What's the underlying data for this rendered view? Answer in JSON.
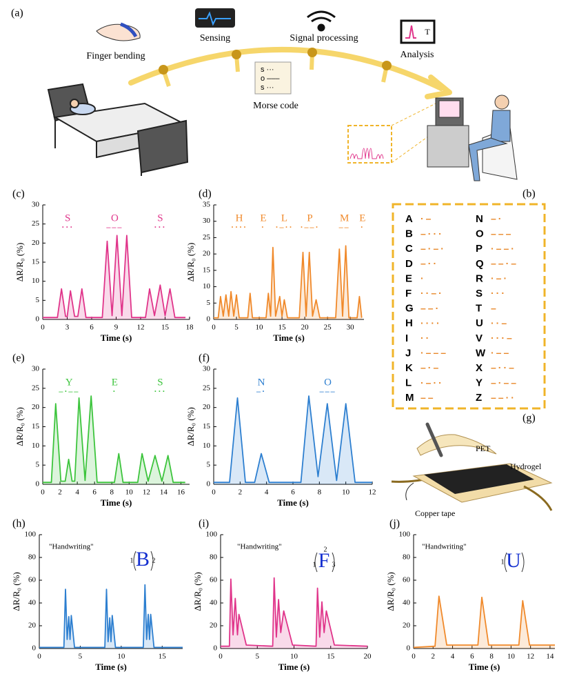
{
  "diagram_a": {
    "panel": "(a)",
    "finger": "Finger bending",
    "sensing": "Sensing",
    "signal": "Signal processing",
    "analysis": "Analysis",
    "morse": "Morse code",
    "card": [
      "s ···",
      "o –––",
      "s ···"
    ],
    "icon_letter": "T"
  },
  "morse_table": {
    "panel": "(b)",
    "rows": [
      {
        "letter": "A",
        "code": "·–"
      },
      {
        "letter": "B",
        "code": "–···"
      },
      {
        "letter": "C",
        "code": "–·–·"
      },
      {
        "letter": "D",
        "code": "–··"
      },
      {
        "letter": "E",
        "code": "·"
      },
      {
        "letter": "F",
        "code": "··–·"
      },
      {
        "letter": "G",
        "code": "––·"
      },
      {
        "letter": "H",
        "code": "····"
      },
      {
        "letter": "I",
        "code": "··"
      },
      {
        "letter": "J",
        "code": "·–––"
      },
      {
        "letter": "K",
        "code": "–·–"
      },
      {
        "letter": "L",
        "code": "·–··"
      },
      {
        "letter": "M",
        "code": "––"
      },
      {
        "letter": "N",
        "code": "–·"
      },
      {
        "letter": "O",
        "code": "–––"
      },
      {
        "letter": "P",
        "code": "·––·"
      },
      {
        "letter": "Q",
        "code": "––·–"
      },
      {
        "letter": "R",
        "code": "·–·"
      },
      {
        "letter": "S",
        "code": "···"
      },
      {
        "letter": "T",
        "code": "–"
      },
      {
        "letter": "U",
        "code": "··–"
      },
      {
        "letter": "V",
        "code": "···–"
      },
      {
        "letter": "W",
        "code": "·––"
      },
      {
        "letter": "X",
        "code": "–··–"
      },
      {
        "letter": "Y",
        "code": "–·––"
      },
      {
        "letter": "Z",
        "code": "––··"
      }
    ]
  },
  "diagram_g": {
    "panel": "(g)",
    "pet": "PET",
    "hydrogel": "Hydrogel",
    "copper": "Copper tape"
  },
  "chart_data": [
    {
      "type": "line",
      "panel": "(c)",
      "color": "#e0348a",
      "xlabel": "Time (s)",
      "ylabel": "ΔR/R₀ (%)",
      "xlim": [
        0,
        18
      ],
      "xticks": [
        0,
        3,
        6,
        9,
        12,
        15,
        18
      ],
      "ylim": [
        0,
        30
      ],
      "yticks": [
        0,
        5,
        10,
        15,
        20,
        25,
        30
      ],
      "letters": [
        {
          "letter": "S",
          "code": "···"
        },
        {
          "letter": "O",
          "code": "–––"
        },
        {
          "letter": "S",
          "code": "···"
        }
      ],
      "x": [
        0,
        1.8,
        2.3,
        2.8,
        3.0,
        3.4,
        3.9,
        4.3,
        4.8,
        5.3,
        7.3,
        7.9,
        8.5,
        9.1,
        9.7,
        10.3,
        10.9,
        12.6,
        13.1,
        13.7,
        14.4,
        15.0,
        15.6,
        16.2,
        17.5
      ],
      "values": [
        0.5,
        0.5,
        8,
        0.8,
        0.8,
        7.5,
        0.8,
        0.8,
        8,
        0.5,
        0.5,
        20.5,
        1,
        22,
        1,
        22,
        0.5,
        0.5,
        8,
        1,
        9,
        1,
        8,
        0.5,
        0.5
      ]
    },
    {
      "type": "line",
      "panel": "(d)",
      "color": "#f0892a",
      "xlabel": "Time (s)",
      "ylabel": "ΔR/R₀ (%)",
      "xlim": [
        0,
        33
      ],
      "xticks": [
        0,
        5,
        10,
        15,
        20,
        25,
        30
      ],
      "ylim": [
        0,
        35
      ],
      "yticks": [
        0,
        5,
        10,
        15,
        20,
        25,
        30,
        35
      ],
      "letters": [
        {
          "letter": "H",
          "code": "····"
        },
        {
          "letter": "E",
          "code": "·"
        },
        {
          "letter": "L",
          "code": "·–··"
        },
        {
          "letter": "P",
          "code": "·––·"
        },
        {
          "letter": "M",
          "code": "––"
        },
        {
          "letter": "E",
          "code": "·"
        }
      ],
      "x": [
        0,
        1,
        1.5,
        2.1,
        2.7,
        3.3,
        3.8,
        4.4,
        5,
        5.6,
        7.5,
        8,
        8.5,
        11.5,
        12,
        12.5,
        13,
        13.6,
        14.5,
        15,
        15.5,
        16.2,
        18.8,
        19.6,
        20.3,
        21,
        21.7,
        22.5,
        23.3,
        26.8,
        27.6,
        28.3,
        29,
        29.7,
        31.5,
        32,
        32.5
      ],
      "values": [
        0.5,
        0.5,
        7,
        1,
        7.5,
        1,
        8.5,
        1,
        7.5,
        0.5,
        0.5,
        8,
        0.5,
        0.5,
        8,
        1,
        22,
        1,
        7,
        1,
        6,
        0.5,
        0.5,
        20.5,
        1,
        20.5,
        1,
        6,
        0.5,
        0.5,
        21.5,
        1,
        22.5,
        0.5,
        0.5,
        7,
        0.5
      ]
    },
    {
      "type": "line",
      "panel": "(e)",
      "color": "#3cc43c",
      "xlabel": "Time (s)",
      "ylabel": "ΔR/R₀ (%)",
      "xlim": [
        0,
        17
      ],
      "xticks": [
        0,
        2,
        4,
        6,
        8,
        10,
        12,
        14,
        16
      ],
      "ylim": [
        0,
        30
      ],
      "yticks": [
        0,
        5,
        10,
        15,
        20,
        25,
        30
      ],
      "letters": [
        {
          "letter": "Y",
          "code": "–·––"
        },
        {
          "letter": "E",
          "code": "·"
        },
        {
          "letter": "S",
          "code": "···"
        }
      ],
      "x": [
        0,
        1,
        1.5,
        2.1,
        2.6,
        3,
        3.4,
        3.7,
        4.2,
        4.9,
        5.6,
        6.3,
        8.3,
        8.8,
        9.3,
        11,
        11.5,
        12.2,
        13,
        13.8,
        14.5,
        15.1,
        16.5
      ],
      "values": [
        0.5,
        0.5,
        21,
        0.8,
        0.8,
        6.5,
        0.8,
        0.8,
        22.5,
        1,
        23,
        0.5,
        0.5,
        8,
        0.5,
        0.5,
        8,
        0.8,
        7.5,
        0.8,
        7.5,
        0.5,
        0.5
      ]
    },
    {
      "type": "line",
      "panel": "(f)",
      "color": "#2d7fd0",
      "xlabel": "Time (s)",
      "ylabel": "ΔR/R₀ (%)",
      "xlim": [
        0,
        12
      ],
      "xticks": [
        0,
        2,
        4,
        6,
        8,
        10,
        12
      ],
      "ylim": [
        0,
        30
      ],
      "yticks": [
        0,
        5,
        10,
        15,
        20,
        25,
        30
      ],
      "letters": [
        {
          "letter": "N",
          "code": "–·"
        },
        {
          "letter": "O",
          "code": "–––"
        }
      ],
      "x": [
        0,
        1.2,
        1.8,
        2.4,
        3.1,
        3.6,
        4.2,
        6.6,
        7.2,
        7.9,
        8.6,
        9.3,
        10,
        10.7,
        12
      ],
      "values": [
        0.5,
        0.5,
        22.5,
        0.5,
        0.5,
        8,
        0.5,
        0.5,
        23,
        2,
        21,
        1,
        21,
        0.5,
        0.5
      ]
    },
    {
      "type": "line",
      "panel": "(h)",
      "color": "#2d7fd0",
      "xlabel": "Time (s)",
      "ylabel": "ΔR/R₀ (%)",
      "xlim": [
        0,
        17.5
      ],
      "xticks": [
        0,
        5,
        10,
        15
      ],
      "ylim": [
        0,
        100
      ],
      "yticks": [
        0,
        20,
        40,
        60,
        80,
        100
      ],
      "note": "\"Handwriting\"",
      "glyph": "B",
      "strokes": [
        "1",
        "2"
      ],
      "x": [
        0,
        3,
        3.2,
        3.4,
        3.6,
        3.75,
        3.9,
        4.3,
        8,
        8.2,
        8.4,
        8.6,
        8.75,
        8.9,
        9.3,
        12.7,
        12.9,
        13.1,
        13.3,
        13.45,
        13.6,
        14,
        17.5
      ],
      "values": [
        1,
        1,
        52,
        8,
        28,
        8,
        29,
        1,
        1,
        52,
        6,
        27,
        6,
        29,
        1,
        1,
        56,
        8,
        30,
        8,
        30,
        1,
        1
      ]
    },
    {
      "type": "line",
      "panel": "(i)",
      "color": "#e0348a",
      "xlabel": "Time (s)",
      "ylabel": "ΔR/R₀ (%)",
      "xlim": [
        0,
        20
      ],
      "xticks": [
        0,
        5,
        10,
        15,
        20
      ],
      "ylim": [
        0,
        100
      ],
      "yticks": [
        0,
        20,
        40,
        60,
        80,
        100
      ],
      "note": "\"Handwriting\"",
      "glyph": "F",
      "strokes": [
        "1",
        "2",
        "3"
      ],
      "x": [
        0,
        1.2,
        1.4,
        1.7,
        2,
        2.3,
        2.5,
        3.5,
        7.1,
        7.3,
        7.6,
        7.9,
        8.2,
        8.6,
        9.8,
        13,
        13.2,
        13.5,
        13.8,
        14.1,
        14.4,
        15.5,
        20
      ],
      "values": [
        2,
        2,
        61,
        12,
        44,
        12,
        30,
        3,
        2,
        62,
        10,
        43,
        14,
        33,
        3,
        2,
        53,
        10,
        41,
        14,
        33,
        3,
        2
      ]
    },
    {
      "type": "line",
      "panel": "(j)",
      "color": "#f0892a",
      "xlabel": "Time (s)",
      "ylabel": "ΔR/R₀ (%)",
      "xlim": [
        0,
        14.5
      ],
      "xticks": [
        0,
        2,
        4,
        6,
        8,
        10,
        12,
        14
      ],
      "ylim": [
        0,
        100
      ],
      "yticks": [
        0,
        20,
        40,
        60,
        80,
        100
      ],
      "note": "\"Handwriting\"",
      "glyph": "U",
      "strokes": [
        "1"
      ],
      "x": [
        0,
        2.2,
        2.6,
        3.4,
        6.6,
        7,
        7.7,
        10.8,
        11.2,
        11.9,
        14.5
      ],
      "values": [
        1,
        2,
        46,
        3,
        3,
        45,
        3,
        3,
        42,
        3,
        3
      ]
    }
  ]
}
